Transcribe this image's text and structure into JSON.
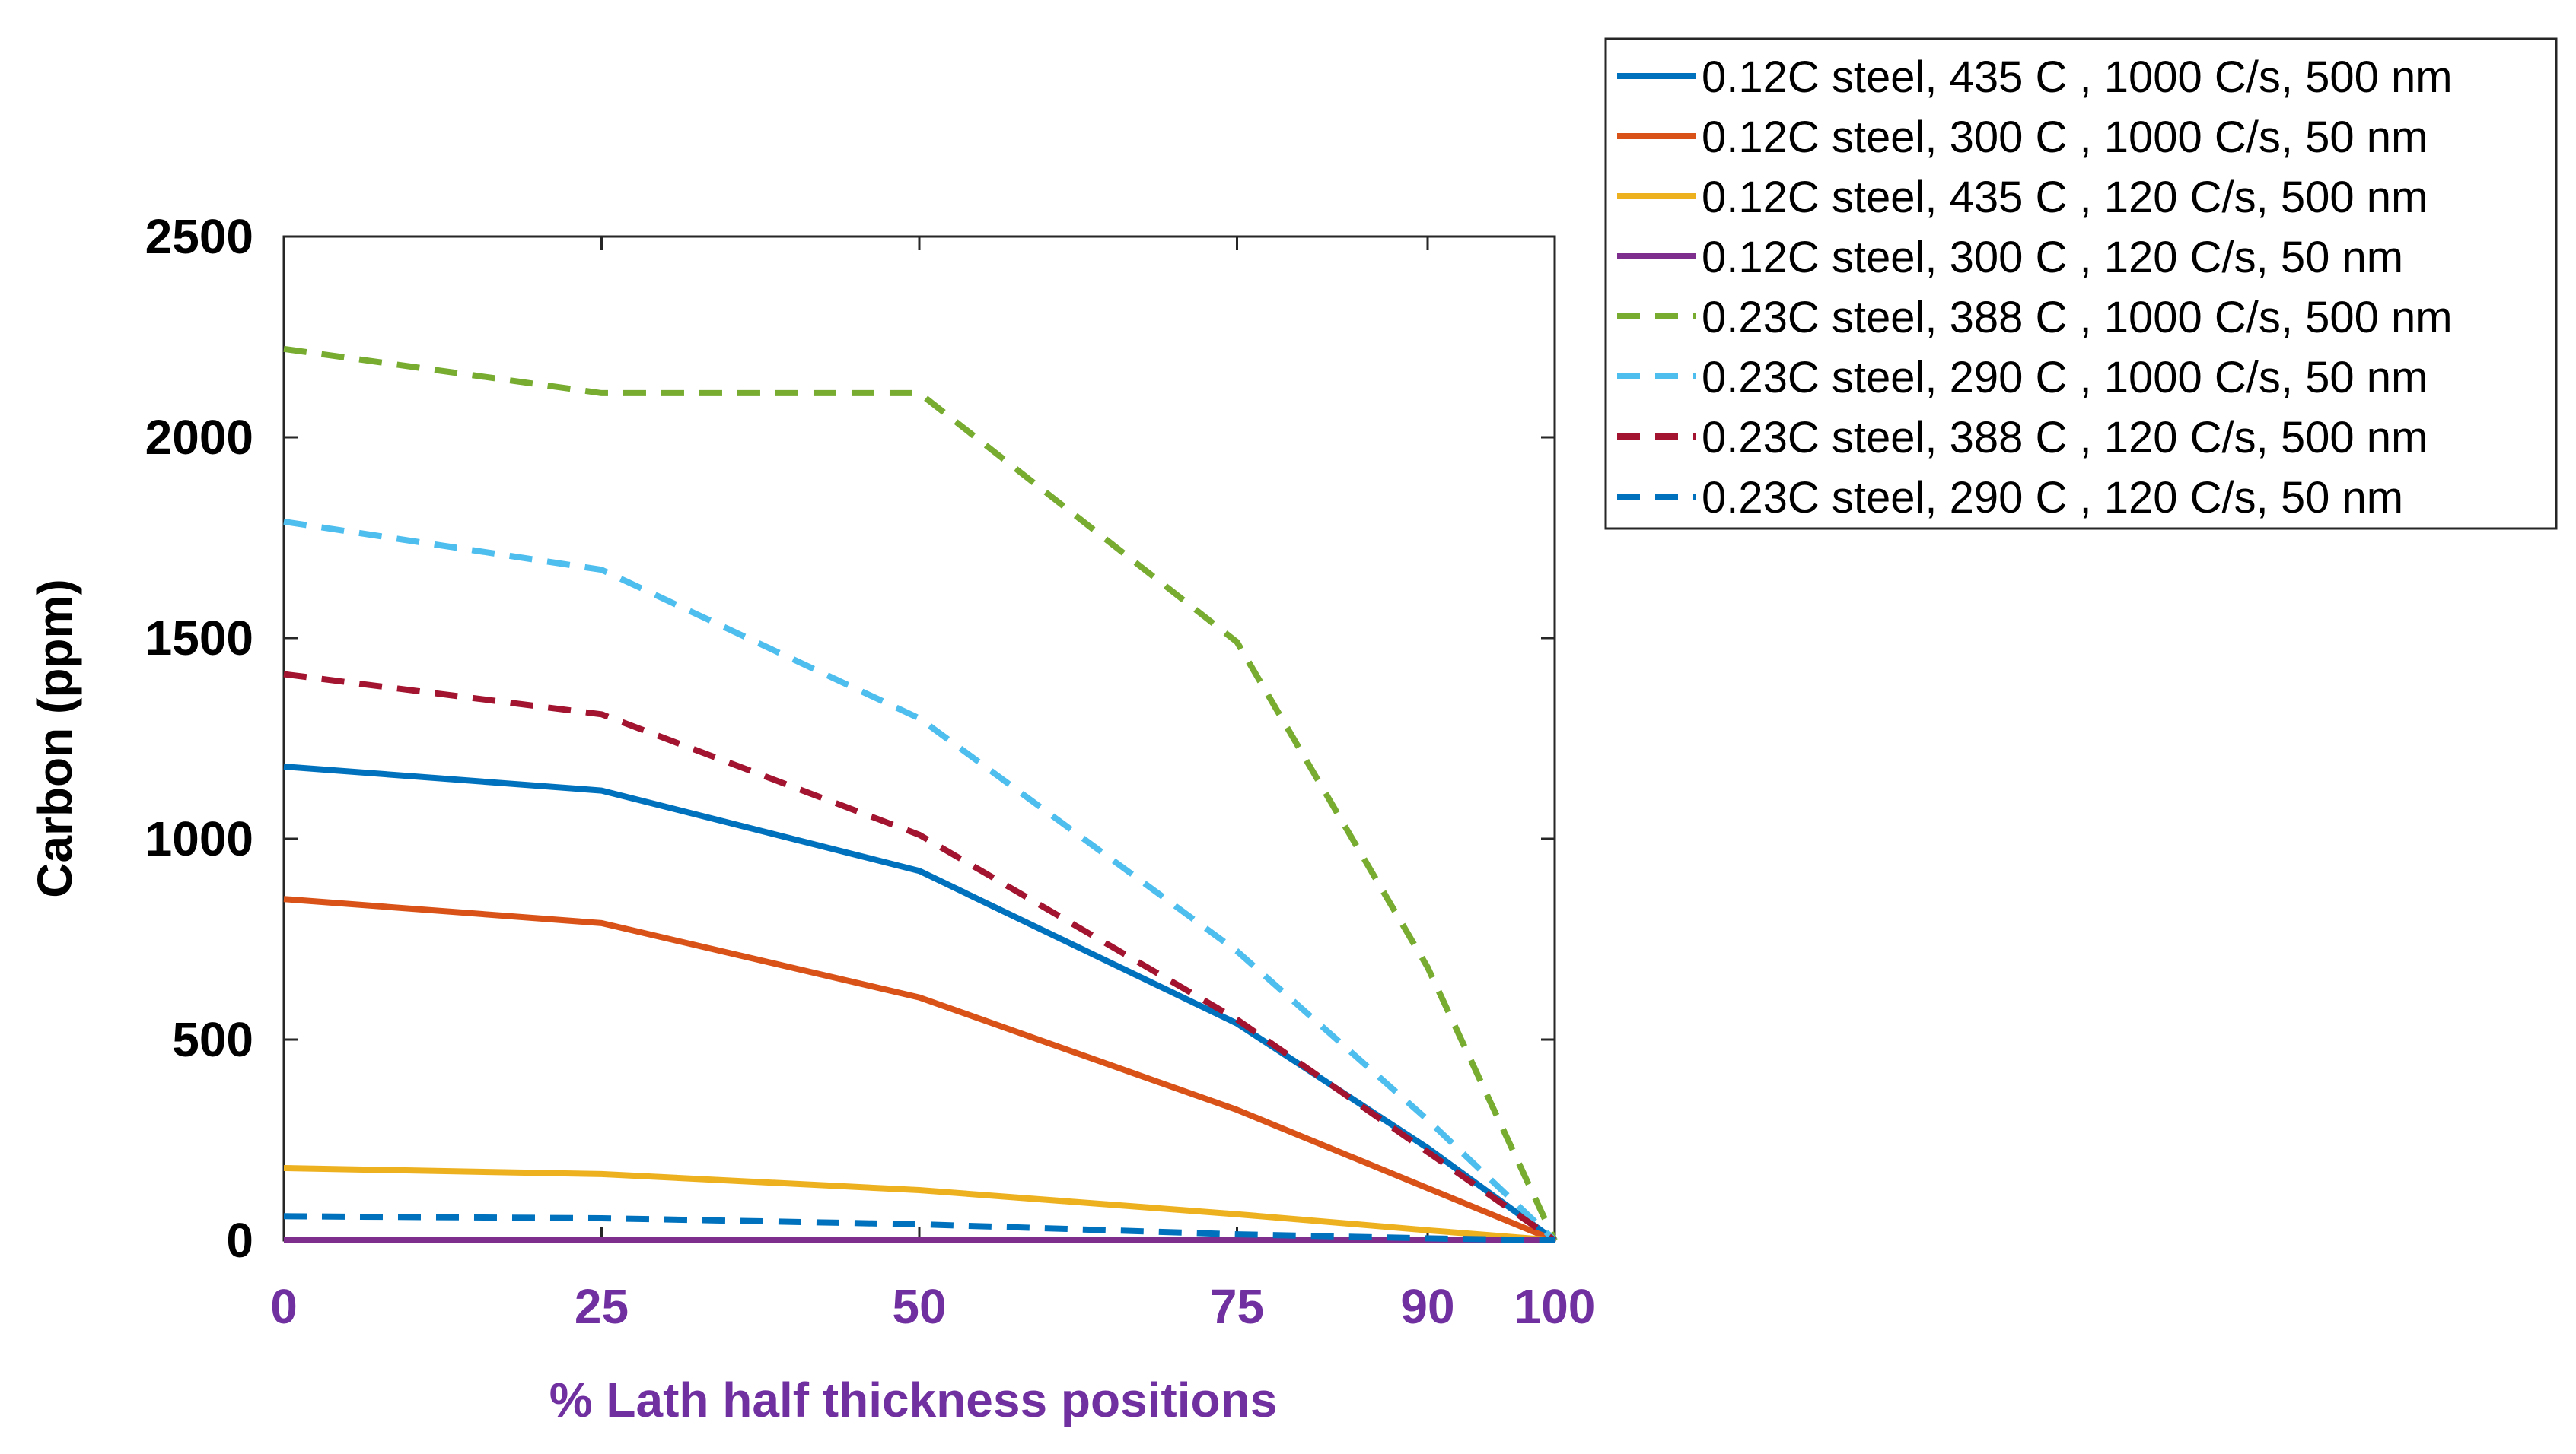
{
  "chart_data": {
    "type": "line",
    "title": "",
    "xlabel": "% Lath half thickness positions",
    "ylabel": "Carbon (ppm)",
    "x": [
      0,
      25,
      50,
      75,
      90,
      100
    ],
    "x_tick_labels": [
      "0",
      "25",
      "50",
      "75",
      "90",
      "100"
    ],
    "y_ticks": [
      0,
      500,
      1000,
      1500,
      2000,
      2500
    ],
    "y_tick_labels": [
      "0",
      "500",
      "1000",
      "1500",
      "2000",
      "2500"
    ],
    "xlim": [
      0,
      100
    ],
    "ylim": [
      0,
      2500
    ],
    "grid": false,
    "legend_position": "outside top-right",
    "label_color": "#7030A0",
    "series": [
      {
        "name": "0.12C steel, 435 C , 1000 C/s, 500 nm",
        "color": "#0072BD",
        "dash": "solid",
        "values": [
          1180,
          1120,
          920,
          540,
          230,
          0
        ]
      },
      {
        "name": "0.12C steel, 300 C , 1000 C/s, 50 nm",
        "color": "#D95319",
        "dash": "solid",
        "values": [
          850,
          790,
          605,
          325,
          130,
          0
        ]
      },
      {
        "name": "0.12C steel, 435 C , 120 C/s, 500 nm",
        "color": "#EDB120",
        "dash": "solid",
        "values": [
          180,
          165,
          125,
          65,
          25,
          0
        ]
      },
      {
        "name": "0.12C steel, 300 C , 120 C/s, 50 nm",
        "color": "#7E2F8E",
        "dash": "solid",
        "values": [
          0,
          0,
          0,
          0,
          0,
          0
        ]
      },
      {
        "name": "0.23C steel, 388 C , 1000 C/s, 500 nm",
        "color": "#77AC30",
        "dash": "dashed",
        "values": [
          2220,
          2110,
          2110,
          1490,
          680,
          0
        ]
      },
      {
        "name": "0.23C steel, 290 C , 1000 C/s, 50 nm",
        "color": "#4DBEEE",
        "dash": "dashed",
        "values": [
          1790,
          1670,
          1300,
          720,
          300,
          0
        ]
      },
      {
        "name": "0.23C steel, 388 C , 120 C/s, 500 nm",
        "color": "#A2142F",
        "dash": "dashed",
        "values": [
          1410,
          1310,
          1010,
          550,
          220,
          0
        ]
      },
      {
        "name": "0.23C steel, 290 C , 120 C/s, 50 nm",
        "color": "#0072BD",
        "dash": "dashed",
        "values": [
          60,
          55,
          40,
          15,
          5,
          0
        ]
      }
    ]
  }
}
